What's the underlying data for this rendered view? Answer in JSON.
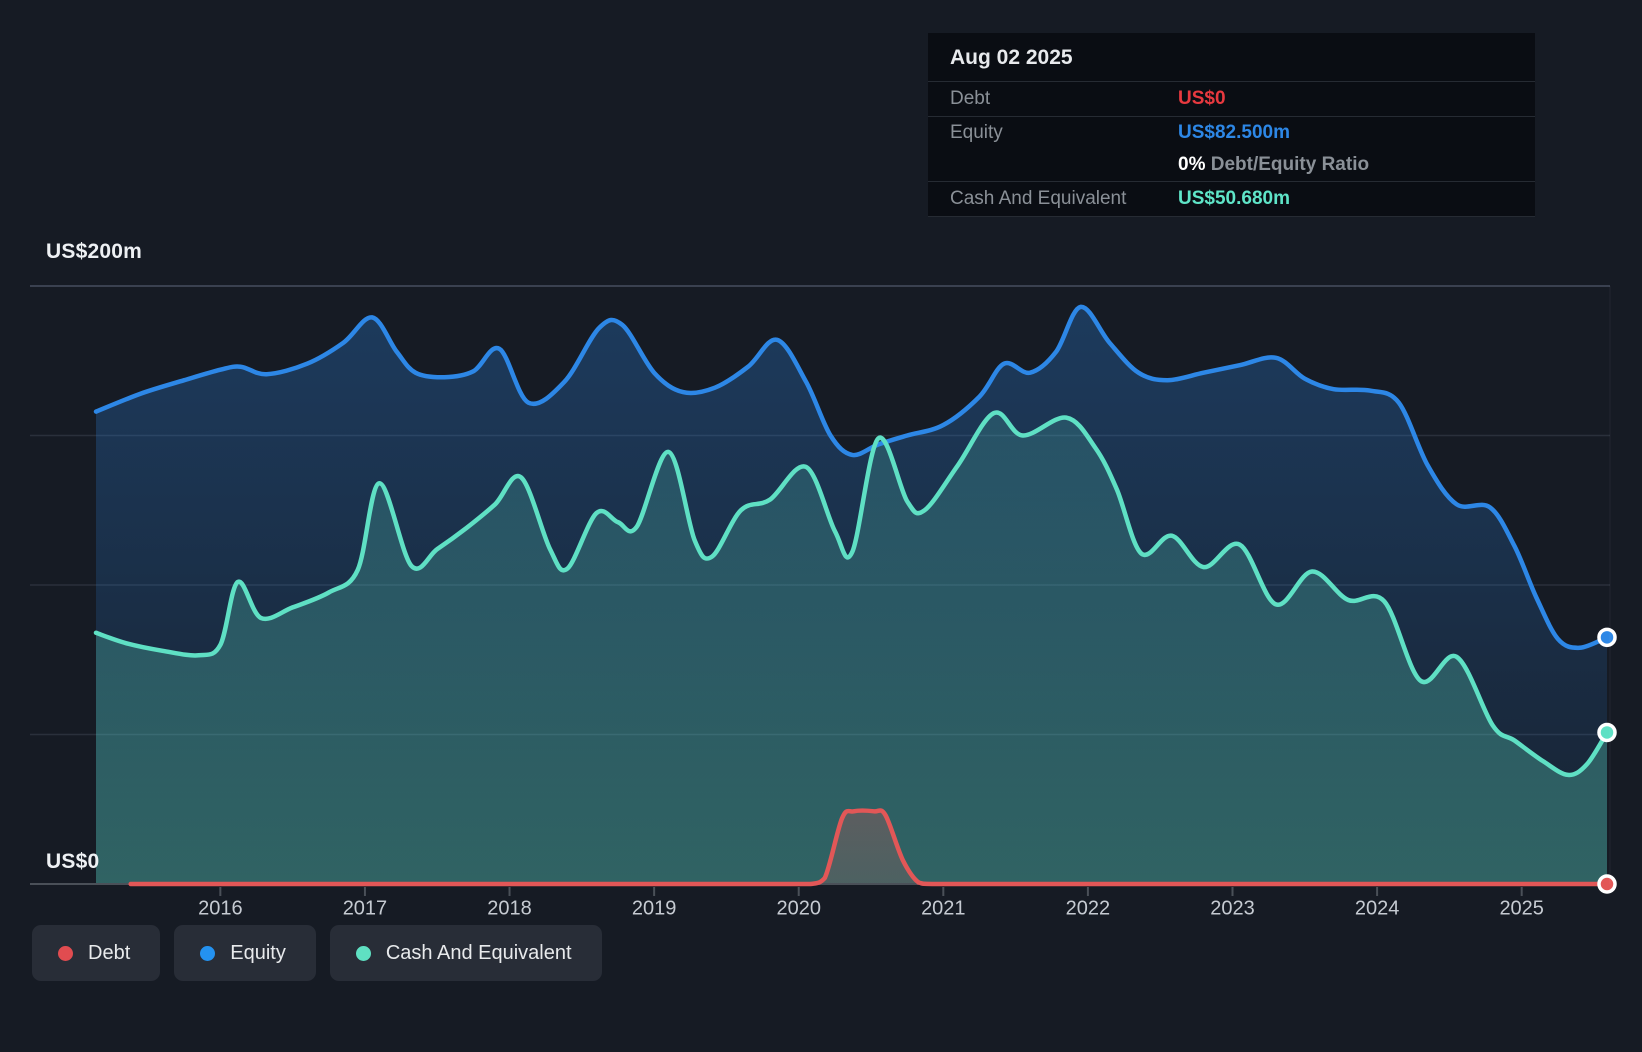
{
  "colors": {
    "background": "#161b24",
    "debt_line": "#e25757",
    "equity_line": "#2d87e6",
    "cash_line": "#5fe0c4",
    "debt_value_text": "#e8393f",
    "equity_value_text": "#2d87e6",
    "cash_value_text": "#5fe5c8",
    "legend_debt_dot": "#e14c50",
    "legend_equity_dot": "#2492f0",
    "legend_cash_dot": "#5fe0c2",
    "grid_top": "#3a4150",
    "grid_minor": "rgba(150,162,180,0.16)",
    "axis_line": "#4a5058",
    "tick_text": "#c6cbd2"
  },
  "y_axis": {
    "top_label": "US$200m",
    "bottom_label": "US$0"
  },
  "tooltip": {
    "date": "Aug 02 2025",
    "debt_label": "Debt",
    "debt_value": "US$0",
    "equity_label": "Equity",
    "equity_value": "US$82.500m",
    "ratio_value": "0%",
    "ratio_label": "Debt/Equity Ratio",
    "cash_label": "Cash And Equivalent",
    "cash_value": "US$50.680m"
  },
  "legend": {
    "items": [
      {
        "key": "debt",
        "label": "Debt"
      },
      {
        "key": "equity",
        "label": "Equity"
      },
      {
        "key": "cash",
        "label": "Cash And Equivalent"
      }
    ]
  },
  "chart_data": {
    "type": "area",
    "x_range": [
      2015.14,
      2025.59
    ],
    "y_range": [
      0,
      200
    ],
    "y_unit": "US$ millions",
    "y_gridlines": [
      0,
      50,
      100,
      150,
      200
    ],
    "x_ticks": [
      2016,
      2017,
      2018,
      2019,
      2020,
      2021,
      2022,
      2023,
      2024,
      2025
    ],
    "legend_position": "bottom-left",
    "series": [
      {
        "name": "Equity",
        "key": "equity",
        "end_value": 82.5,
        "points": [
          [
            2015.14,
            158
          ],
          [
            2015.45,
            164
          ],
          [
            2015.75,
            168.5
          ],
          [
            2016.0,
            172
          ],
          [
            2016.14,
            173
          ],
          [
            2016.32,
            170.5
          ],
          [
            2016.6,
            174
          ],
          [
            2016.85,
            181
          ],
          [
            2017.05,
            189.5
          ],
          [
            2017.22,
            178
          ],
          [
            2017.35,
            171
          ],
          [
            2017.55,
            169.5
          ],
          [
            2017.75,
            171.5
          ],
          [
            2017.93,
            179
          ],
          [
            2018.13,
            161
          ],
          [
            2018.38,
            168
          ],
          [
            2018.62,
            186
          ],
          [
            2018.78,
            187
          ],
          [
            2019.0,
            171
          ],
          [
            2019.2,
            164.5
          ],
          [
            2019.42,
            166
          ],
          [
            2019.65,
            173
          ],
          [
            2019.85,
            182
          ],
          [
            2020.05,
            168
          ],
          [
            2020.22,
            150
          ],
          [
            2020.37,
            143.5
          ],
          [
            2020.55,
            147
          ],
          [
            2020.75,
            150
          ],
          [
            2021.0,
            153.5
          ],
          [
            2021.25,
            163
          ],
          [
            2021.42,
            174
          ],
          [
            2021.6,
            171
          ],
          [
            2021.78,
            178
          ],
          [
            2021.95,
            193
          ],
          [
            2022.15,
            181
          ],
          [
            2022.35,
            171
          ],
          [
            2022.55,
            168.5
          ],
          [
            2022.8,
            171
          ],
          [
            2023.05,
            173.5
          ],
          [
            2023.3,
            176
          ],
          [
            2023.5,
            169
          ],
          [
            2023.7,
            165.5
          ],
          [
            2023.95,
            165
          ],
          [
            2024.15,
            161
          ],
          [
            2024.35,
            140
          ],
          [
            2024.55,
            127
          ],
          [
            2024.78,
            126
          ],
          [
            2024.95,
            113
          ],
          [
            2025.1,
            96
          ],
          [
            2025.25,
            82
          ],
          [
            2025.4,
            79
          ],
          [
            2025.59,
            82.5
          ]
        ]
      },
      {
        "name": "Cash And Equivalent",
        "key": "cash",
        "end_value": 50.68,
        "points": [
          [
            2015.14,
            84
          ],
          [
            2015.35,
            80.5
          ],
          [
            2015.6,
            78
          ],
          [
            2015.85,
            76.5
          ],
          [
            2016.0,
            80
          ],
          [
            2016.12,
            101
          ],
          [
            2016.28,
            89
          ],
          [
            2016.5,
            92.5
          ],
          [
            2016.75,
            97.5
          ],
          [
            2016.95,
            105
          ],
          [
            2017.1,
            134
          ],
          [
            2017.32,
            106.5
          ],
          [
            2017.5,
            112
          ],
          [
            2017.7,
            119
          ],
          [
            2017.9,
            127
          ],
          [
            2018.08,
            136
          ],
          [
            2018.28,
            112
          ],
          [
            2018.4,
            105.5
          ],
          [
            2018.6,
            124
          ],
          [
            2018.75,
            121
          ],
          [
            2018.88,
            119.5
          ],
          [
            2019.1,
            144.5
          ],
          [
            2019.28,
            115
          ],
          [
            2019.4,
            109.5
          ],
          [
            2019.6,
            125
          ],
          [
            2019.8,
            128.5
          ],
          [
            2020.05,
            139.5
          ],
          [
            2020.25,
            118
          ],
          [
            2020.37,
            111
          ],
          [
            2020.55,
            149
          ],
          [
            2020.75,
            128
          ],
          [
            2020.87,
            125
          ],
          [
            2021.1,
            140
          ],
          [
            2021.35,
            157.5
          ],
          [
            2021.55,
            150
          ],
          [
            2021.85,
            156
          ],
          [
            2022.05,
            146
          ],
          [
            2022.2,
            132
          ],
          [
            2022.37,
            110.5
          ],
          [
            2022.58,
            116.5
          ],
          [
            2022.8,
            106
          ],
          [
            2023.05,
            113.5
          ],
          [
            2023.3,
            93.5
          ],
          [
            2023.55,
            104.5
          ],
          [
            2023.8,
            95
          ],
          [
            2024.05,
            94.5
          ],
          [
            2024.3,
            68
          ],
          [
            2024.55,
            76
          ],
          [
            2024.8,
            53
          ],
          [
            2024.95,
            48
          ],
          [
            2025.15,
            41
          ],
          [
            2025.32,
            36.5
          ],
          [
            2025.45,
            40
          ],
          [
            2025.59,
            50.68
          ]
        ]
      },
      {
        "name": "Debt",
        "key": "debt",
        "end_value": 0,
        "points": [
          [
            2015.38,
            0
          ],
          [
            2016.0,
            0
          ],
          [
            2016.5,
            0
          ],
          [
            2017.0,
            0
          ],
          [
            2017.5,
            0
          ],
          [
            2018.0,
            0
          ],
          [
            2018.5,
            0
          ],
          [
            2019.0,
            0
          ],
          [
            2019.5,
            0
          ],
          [
            2019.9,
            0
          ],
          [
            2020.08,
            0
          ],
          [
            2020.18,
            2
          ],
          [
            2020.3,
            22
          ],
          [
            2020.38,
            24.3
          ],
          [
            2020.52,
            24.3
          ],
          [
            2020.6,
            23
          ],
          [
            2020.72,
            8
          ],
          [
            2020.83,
            0.5
          ],
          [
            2020.95,
            0
          ],
          [
            2021.5,
            0
          ],
          [
            2022.0,
            0
          ],
          [
            2022.5,
            0
          ],
          [
            2023.0,
            0
          ],
          [
            2023.5,
            0
          ],
          [
            2024.0,
            0
          ],
          [
            2024.5,
            0
          ],
          [
            2025.0,
            0
          ],
          [
            2025.59,
            0
          ]
        ]
      }
    ]
  }
}
